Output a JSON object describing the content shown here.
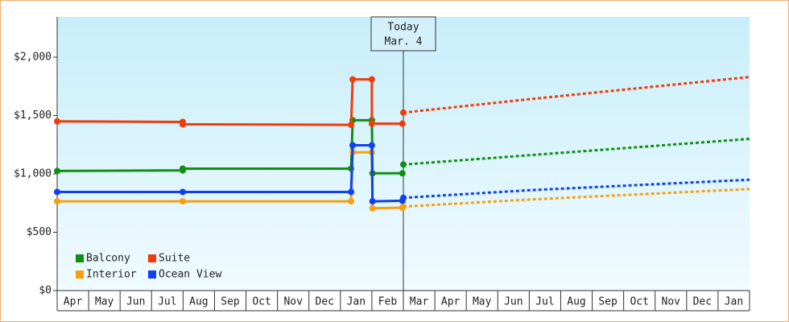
{
  "chart_data": {
    "type": "line",
    "categories": [
      "Apr",
      "May",
      "Jun",
      "Jul",
      "Aug",
      "Sep",
      "Oct",
      "Nov",
      "Dec",
      "Jan",
      "Feb",
      "Mar",
      "Apr",
      "May",
      "Jun",
      "Jul",
      "Aug",
      "Sep",
      "Oct",
      "Nov",
      "Dec",
      "Jan"
    ],
    "xlim": [
      0,
      22
    ],
    "ylim": [
      0,
      2345
    ],
    "yticks": [
      {
        "value": 0,
        "label": "$0"
      },
      {
        "value": 500,
        "label": "$500"
      },
      {
        "value": 1000,
        "label": "$1,000"
      },
      {
        "value": 1500,
        "label": "$1,500"
      },
      {
        "value": 2000,
        "label": "$2,000"
      }
    ],
    "today": {
      "x": 11.0,
      "label": [
        "Today",
        "Mar. 4"
      ]
    },
    "series": [
      {
        "name": "Balcony",
        "color": "#109010",
        "x": [
          0,
          3.99,
          3.99,
          9.34,
          9.39,
          10.0,
          10.02,
          10.97
        ],
        "values": [
          1025,
          1030,
          1045,
          1045,
          1460,
          1460,
          1005,
          1005
        ],
        "forecast_x": [
          11.0,
          15.0,
          22.0
        ],
        "forecast_values": [
          1080,
          1160,
          1300
        ]
      },
      {
        "name": "Suite",
        "color": "#f03c0a",
        "x": [
          0,
          3.99,
          3.99,
          9.34,
          9.39,
          10.0,
          10.0,
          10.97
        ],
        "values": [
          1450,
          1445,
          1425,
          1420,
          1810,
          1810,
          1430,
          1430
        ],
        "forecast_x": [
          11.0,
          15.0,
          22.0
        ],
        "forecast_values": [
          1525,
          1640,
          1830
        ]
      },
      {
        "name": "Interior",
        "color": "#f5a010",
        "x": [
          0,
          3.99,
          9.34,
          9.39,
          10.0,
          10.02,
          10.97
        ],
        "values": [
          765,
          765,
          765,
          1185,
          1185,
          705,
          710
        ],
        "forecast_x": [
          11.0,
          15.0,
          22.0
        ],
        "forecast_values": [
          720,
          780,
          870
        ]
      },
      {
        "name": "Ocean View",
        "color": "#1040f0",
        "x": [
          0,
          3.99,
          9.34,
          9.39,
          10.0,
          10.02,
          10.97
        ],
        "values": [
          845,
          845,
          845,
          1245,
          1245,
          765,
          770
        ],
        "forecast_x": [
          11.0,
          15.0,
          22.0
        ],
        "forecast_values": [
          795,
          860,
          950
        ]
      }
    ]
  }
}
